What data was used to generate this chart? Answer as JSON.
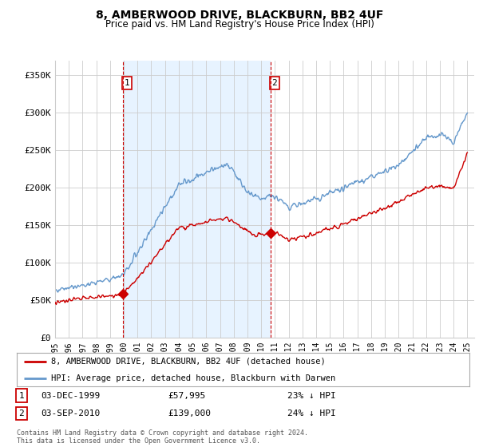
{
  "title": "8, AMBERWOOD DRIVE, BLACKBURN, BB2 4UF",
  "subtitle": "Price paid vs. HM Land Registry's House Price Index (HPI)",
  "ylabel_ticks": [
    "£0",
    "£50K",
    "£100K",
    "£150K",
    "£200K",
    "£250K",
    "£300K",
    "£350K"
  ],
  "ytick_values": [
    0,
    50000,
    100000,
    150000,
    200000,
    250000,
    300000,
    350000
  ],
  "ylim": [
    0,
    370000
  ],
  "sale1_year": 1999.917,
  "sale1_price": 57995,
  "sale1_date_label": "03-DEC-1999",
  "sale1_pct": "23% ↓ HPI",
  "sale2_year": 2010.667,
  "sale2_price": 139000,
  "sale2_date_label": "03-SEP-2010",
  "sale2_pct": "24% ↓ HPI",
  "legend_red": "8, AMBERWOOD DRIVE, BLACKBURN, BB2 4UF (detached house)",
  "legend_blue": "HPI: Average price, detached house, Blackburn with Darwen",
  "footer": "Contains HM Land Registry data © Crown copyright and database right 2024.\nThis data is licensed under the Open Government Licence v3.0.",
  "red_color": "#cc0000",
  "blue_color": "#6699cc",
  "shade_color": "#ddeeff",
  "bg_color": "#ffffff",
  "grid_color": "#cccccc"
}
